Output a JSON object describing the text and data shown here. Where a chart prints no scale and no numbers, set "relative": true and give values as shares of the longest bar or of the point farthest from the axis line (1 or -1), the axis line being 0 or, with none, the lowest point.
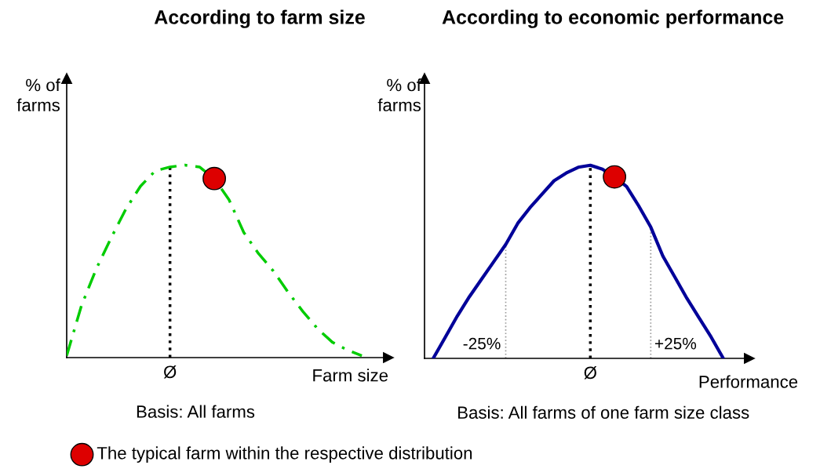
{
  "chart_data": [
    {
      "type": "line",
      "title": "According to farm size",
      "ylabel": "% of\nfarms",
      "xlabel": "Farm size",
      "relative": true,
      "categories": [
        null,
        null,
        null,
        null,
        null,
        null,
        null,
        null,
        null,
        null,
        null,
        null,
        null,
        null,
        null,
        null,
        null,
        null,
        null,
        null,
        null
      ],
      "series": [
        {
          "color": "#00cc00",
          "line_style": "dashed",
          "values": [
            0.01,
            0.27,
            0.46,
            0.62,
            0.77,
            0.89,
            0.97,
            0.99,
            1.0,
            0.99,
            0.93,
            0.82,
            0.65,
            0.54,
            0.45,
            0.34,
            0.24,
            0.15,
            0.08,
            0.04,
            0.01
          ]
        }
      ],
      "annotations": [
        "Ø",
        "Basis: All farms",
        "The typical farm within the respective distribution"
      ]
    },
    {
      "type": "line",
      "title": "According to economic performance",
      "ylabel": "% of\nfarms",
      "xlabel": "Performance",
      "relative": true,
      "categories": [
        null,
        null,
        null,
        null,
        null,
        null,
        null,
        null,
        null,
        null,
        null,
        null,
        null,
        null,
        null,
        null,
        null,
        null,
        null,
        null,
        null,
        null,
        null,
        null,
        null
      ],
      "series": [
        {
          "color": "#000099",
          "line_style": "solid",
          "values": [
            0,
            0.11,
            0.22,
            0.32,
            0.41,
            0.5,
            0.59,
            0.7,
            0.78,
            0.85,
            0.92,
            0.96,
            0.99,
            1.0,
            0.98,
            0.94,
            0.89,
            0.79,
            0.68,
            0.53,
            0.42,
            0.31,
            0.21,
            0.11,
            0
          ]
        }
      ],
      "annotations": [
        "Ø",
        "-25%",
        "+25%",
        "Basis: All farms of one farm size class"
      ]
    }
  ]
}
